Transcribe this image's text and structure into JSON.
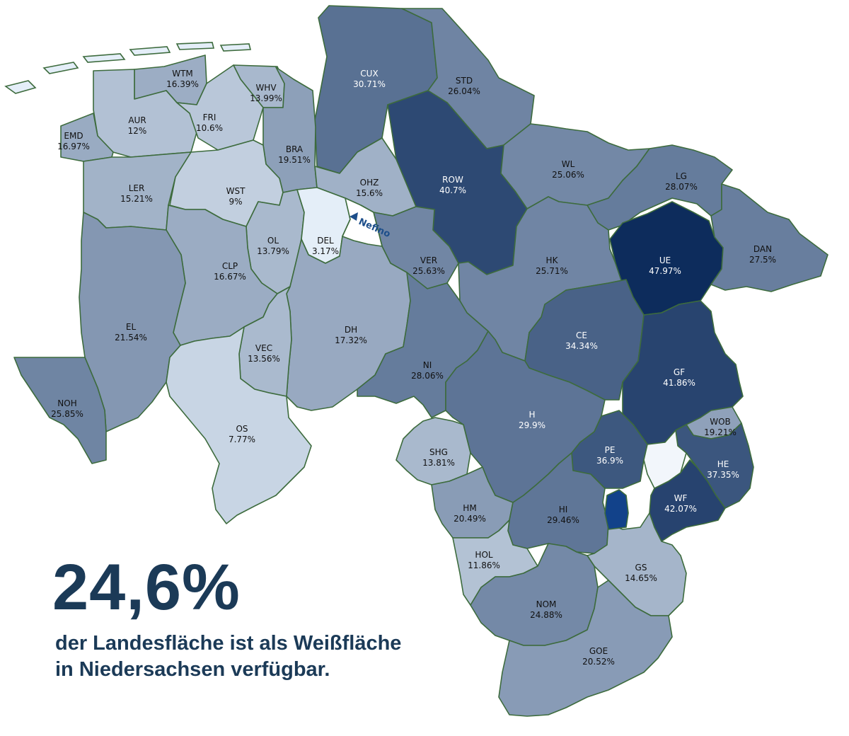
{
  "headline": {
    "value": "24,6%",
    "line1": "der Landesfläche ist als Weißfläche",
    "line2": "in Niedersachsen verfügbar."
  },
  "logo": {
    "text": "Nefino"
  },
  "colors": {
    "scale_lightest": "#e4eef8",
    "scale_darkest": "#0d2c5c",
    "border": "#3d6b3d",
    "headline_text": "#1b3a57"
  },
  "districts": [
    {
      "code": "CUX",
      "value": "30.71%"
    },
    {
      "code": "STD",
      "value": "26.04%"
    },
    {
      "code": "WTM",
      "value": "16.39%"
    },
    {
      "code": "WHV",
      "value": "13.99%"
    },
    {
      "code": "AUR",
      "value": "12%"
    },
    {
      "code": "FRI",
      "value": "10.6%"
    },
    {
      "code": "EMD",
      "value": "16.97%"
    },
    {
      "code": "BRA",
      "value": "19.51%"
    },
    {
      "code": "ROW",
      "value": "40.7%"
    },
    {
      "code": "WL",
      "value": "25.06%"
    },
    {
      "code": "LG",
      "value": "28.07%"
    },
    {
      "code": "OHZ",
      "value": "15.6%"
    },
    {
      "code": "LER",
      "value": "15.21%"
    },
    {
      "code": "WST",
      "value": "9%"
    },
    {
      "code": "OL",
      "value": "13.79%"
    },
    {
      "code": "DEL",
      "value": "3.17%"
    },
    {
      "code": "VER",
      "value": "25.63%"
    },
    {
      "code": "HK",
      "value": "25.71%"
    },
    {
      "code": "UE",
      "value": "47.97%"
    },
    {
      "code": "DAN",
      "value": "27.5%"
    },
    {
      "code": "CLP",
      "value": "16.67%"
    },
    {
      "code": "EL",
      "value": "21.54%"
    },
    {
      "code": "DH",
      "value": "17.32%"
    },
    {
      "code": "CE",
      "value": "34.34%"
    },
    {
      "code": "VEC",
      "value": "13.56%"
    },
    {
      "code": "NI",
      "value": "28.06%"
    },
    {
      "code": "GF",
      "value": "41.86%"
    },
    {
      "code": "NOH",
      "value": "25.85%"
    },
    {
      "code": "H",
      "value": "29.9%"
    },
    {
      "code": "WOB",
      "value": "19.21%"
    },
    {
      "code": "OS",
      "value": "7.77%"
    },
    {
      "code": "SHG",
      "value": "13.81%"
    },
    {
      "code": "PE",
      "value": "36.9%"
    },
    {
      "code": "HE",
      "value": "37.35%"
    },
    {
      "code": "WF",
      "value": "42.07%"
    },
    {
      "code": "HM",
      "value": "20.49%"
    },
    {
      "code": "HI",
      "value": "29.46%"
    },
    {
      "code": "HOL",
      "value": "11.86%"
    },
    {
      "code": "GS",
      "value": "14.65%"
    },
    {
      "code": "NOM",
      "value": "24.88%"
    },
    {
      "code": "GOE",
      "value": "20.52%"
    }
  ]
}
